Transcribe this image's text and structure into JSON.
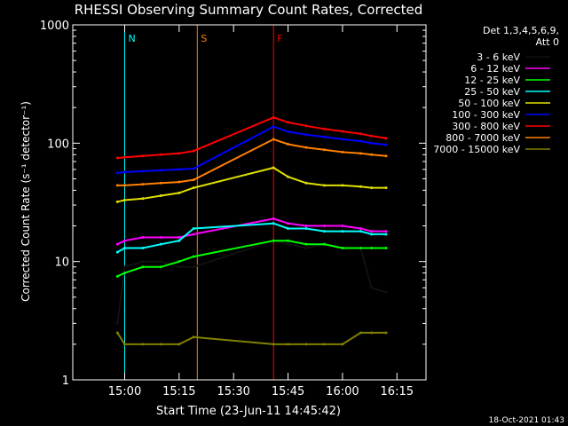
{
  "chart_data": {
    "type": "line",
    "title": "RHESSI Observing Summary Count Rates, Corrected",
    "xlabel": "Start Time (23-Jun-11 14:45:42)",
    "ylabel": "Corrected Count Rate (s⁻¹ detector⁻¹)",
    "ylog": true,
    "xlim": [
      "14:45:42",
      "16:23:00"
    ],
    "ylim": [
      1,
      1000
    ],
    "xticks": [
      "15:00",
      "15:15",
      "15:30",
      "15:45",
      "16:00",
      "16:15"
    ],
    "yticks": [
      "1",
      "10",
      "100",
      "1000"
    ],
    "legend_header": [
      "Det 1,3,4,5,6,9,",
      "Att 0"
    ],
    "legend_position": "right",
    "footer": "18-Oct-2021 01:43",
    "series": [
      {
        "name": "3 - 6 keV",
        "color": "#000000",
        "x": [
          "14:58",
          "15:00",
          "15:05",
          "15:10",
          "15:15",
          "15:19",
          "15:41",
          "15:45",
          "15:50",
          "15:55",
          "16:00",
          "16:05",
          "16:08",
          "16:12"
        ],
        "y": [
          3,
          9,
          10,
          10,
          9,
          9,
          15,
          14,
          13,
          14,
          13,
          13,
          6,
          5.5
        ]
      },
      {
        "name": "6 - 12 keV",
        "color": "#ff00ff",
        "x": [
          "14:58",
          "15:00",
          "15:05",
          "15:10",
          "15:15",
          "15:19",
          "15:41",
          "15:45",
          "15:50",
          "15:55",
          "16:00",
          "16:05",
          "16:08",
          "16:12"
        ],
        "y": [
          14,
          15,
          16,
          16,
          16,
          17,
          23,
          21,
          20,
          20,
          20,
          19,
          18,
          18
        ]
      },
      {
        "name": "12 - 25 keV",
        "color": "#00ff00",
        "x": [
          "14:58",
          "15:00",
          "15:05",
          "15:10",
          "15:15",
          "15:19",
          "15:41",
          "15:45",
          "15:50",
          "15:55",
          "16:00",
          "16:05",
          "16:08",
          "16:12"
        ],
        "y": [
          7.5,
          8,
          9,
          9,
          10,
          11,
          15,
          15,
          14,
          14,
          13,
          13,
          13,
          13
        ]
      },
      {
        "name": "25 - 50 keV",
        "color": "#00ffff",
        "x": [
          "14:58",
          "15:00",
          "15:05",
          "15:10",
          "15:15",
          "15:19",
          "15:41",
          "15:45",
          "15:50",
          "15:55",
          "16:00",
          "16:05",
          "16:08",
          "16:12"
        ],
        "y": [
          12,
          13,
          13,
          14,
          15,
          19,
          21,
          19,
          19,
          18,
          18,
          18,
          17,
          17
        ]
      },
      {
        "name": "50 - 100 keV",
        "color": "#e0e000",
        "x": [
          "14:58",
          "15:00",
          "15:05",
          "15:10",
          "15:15",
          "15:19",
          "15:41",
          "15:45",
          "15:50",
          "15:55",
          "16:00",
          "16:05",
          "16:08",
          "16:12"
        ],
        "y": [
          32,
          33,
          34,
          36,
          38,
          42,
          62,
          52,
          46,
          44,
          44,
          43,
          42,
          42
        ]
      },
      {
        "name": "100 - 300 keV",
        "color": "#0000ff",
        "x": [
          "14:58",
          "15:00",
          "15:05",
          "15:10",
          "15:15",
          "15:19",
          "15:41",
          "15:45",
          "15:50",
          "15:55",
          "16:00",
          "16:05",
          "16:08",
          "16:12"
        ],
        "y": [
          56,
          57,
          58,
          59,
          60,
          61,
          138,
          125,
          118,
          113,
          108,
          104,
          100,
          97
        ]
      },
      {
        "name": "300 - 800 keV",
        "color": "#ff0000",
        "x": [
          "14:58",
          "15:00",
          "15:05",
          "15:10",
          "15:15",
          "15:19",
          "15:41",
          "15:45",
          "15:50",
          "15:55",
          "16:00",
          "16:05",
          "16:08",
          "16:12"
        ],
        "y": [
          75,
          76,
          78,
          80,
          82,
          86,
          165,
          150,
          140,
          132,
          126,
          120,
          115,
          110
        ]
      },
      {
        "name": "800 - 7000 keV",
        "color": "#ff8000",
        "x": [
          "14:58",
          "15:00",
          "15:05",
          "15:10",
          "15:15",
          "15:19",
          "15:41",
          "15:45",
          "15:50",
          "15:55",
          "16:00",
          "16:05",
          "16:08",
          "16:12"
        ],
        "y": [
          44,
          44,
          45,
          46,
          47,
          49,
          108,
          98,
          92,
          88,
          84,
          82,
          80,
          78
        ]
      },
      {
        "name": "7000 - 15000 keV",
        "color": "#808000",
        "x": [
          "14:58",
          "15:00",
          "15:05",
          "15:10",
          "15:15",
          "15:19",
          "15:41",
          "15:45",
          "15:50",
          "15:55",
          "16:00",
          "16:05",
          "16:08",
          "16:12"
        ],
        "y": [
          2.5,
          2,
          2,
          2,
          2,
          2.3,
          2,
          2,
          2,
          2,
          2,
          2.5,
          2.5,
          2.5
        ]
      }
    ],
    "annotations": [
      {
        "label": "N",
        "color": "#00ffff",
        "x": "15:00"
      },
      {
        "label": "S",
        "color": "#ff8000",
        "x": "15:20"
      },
      {
        "label": "F",
        "color": "#ff0000",
        "x": "15:41"
      }
    ]
  }
}
